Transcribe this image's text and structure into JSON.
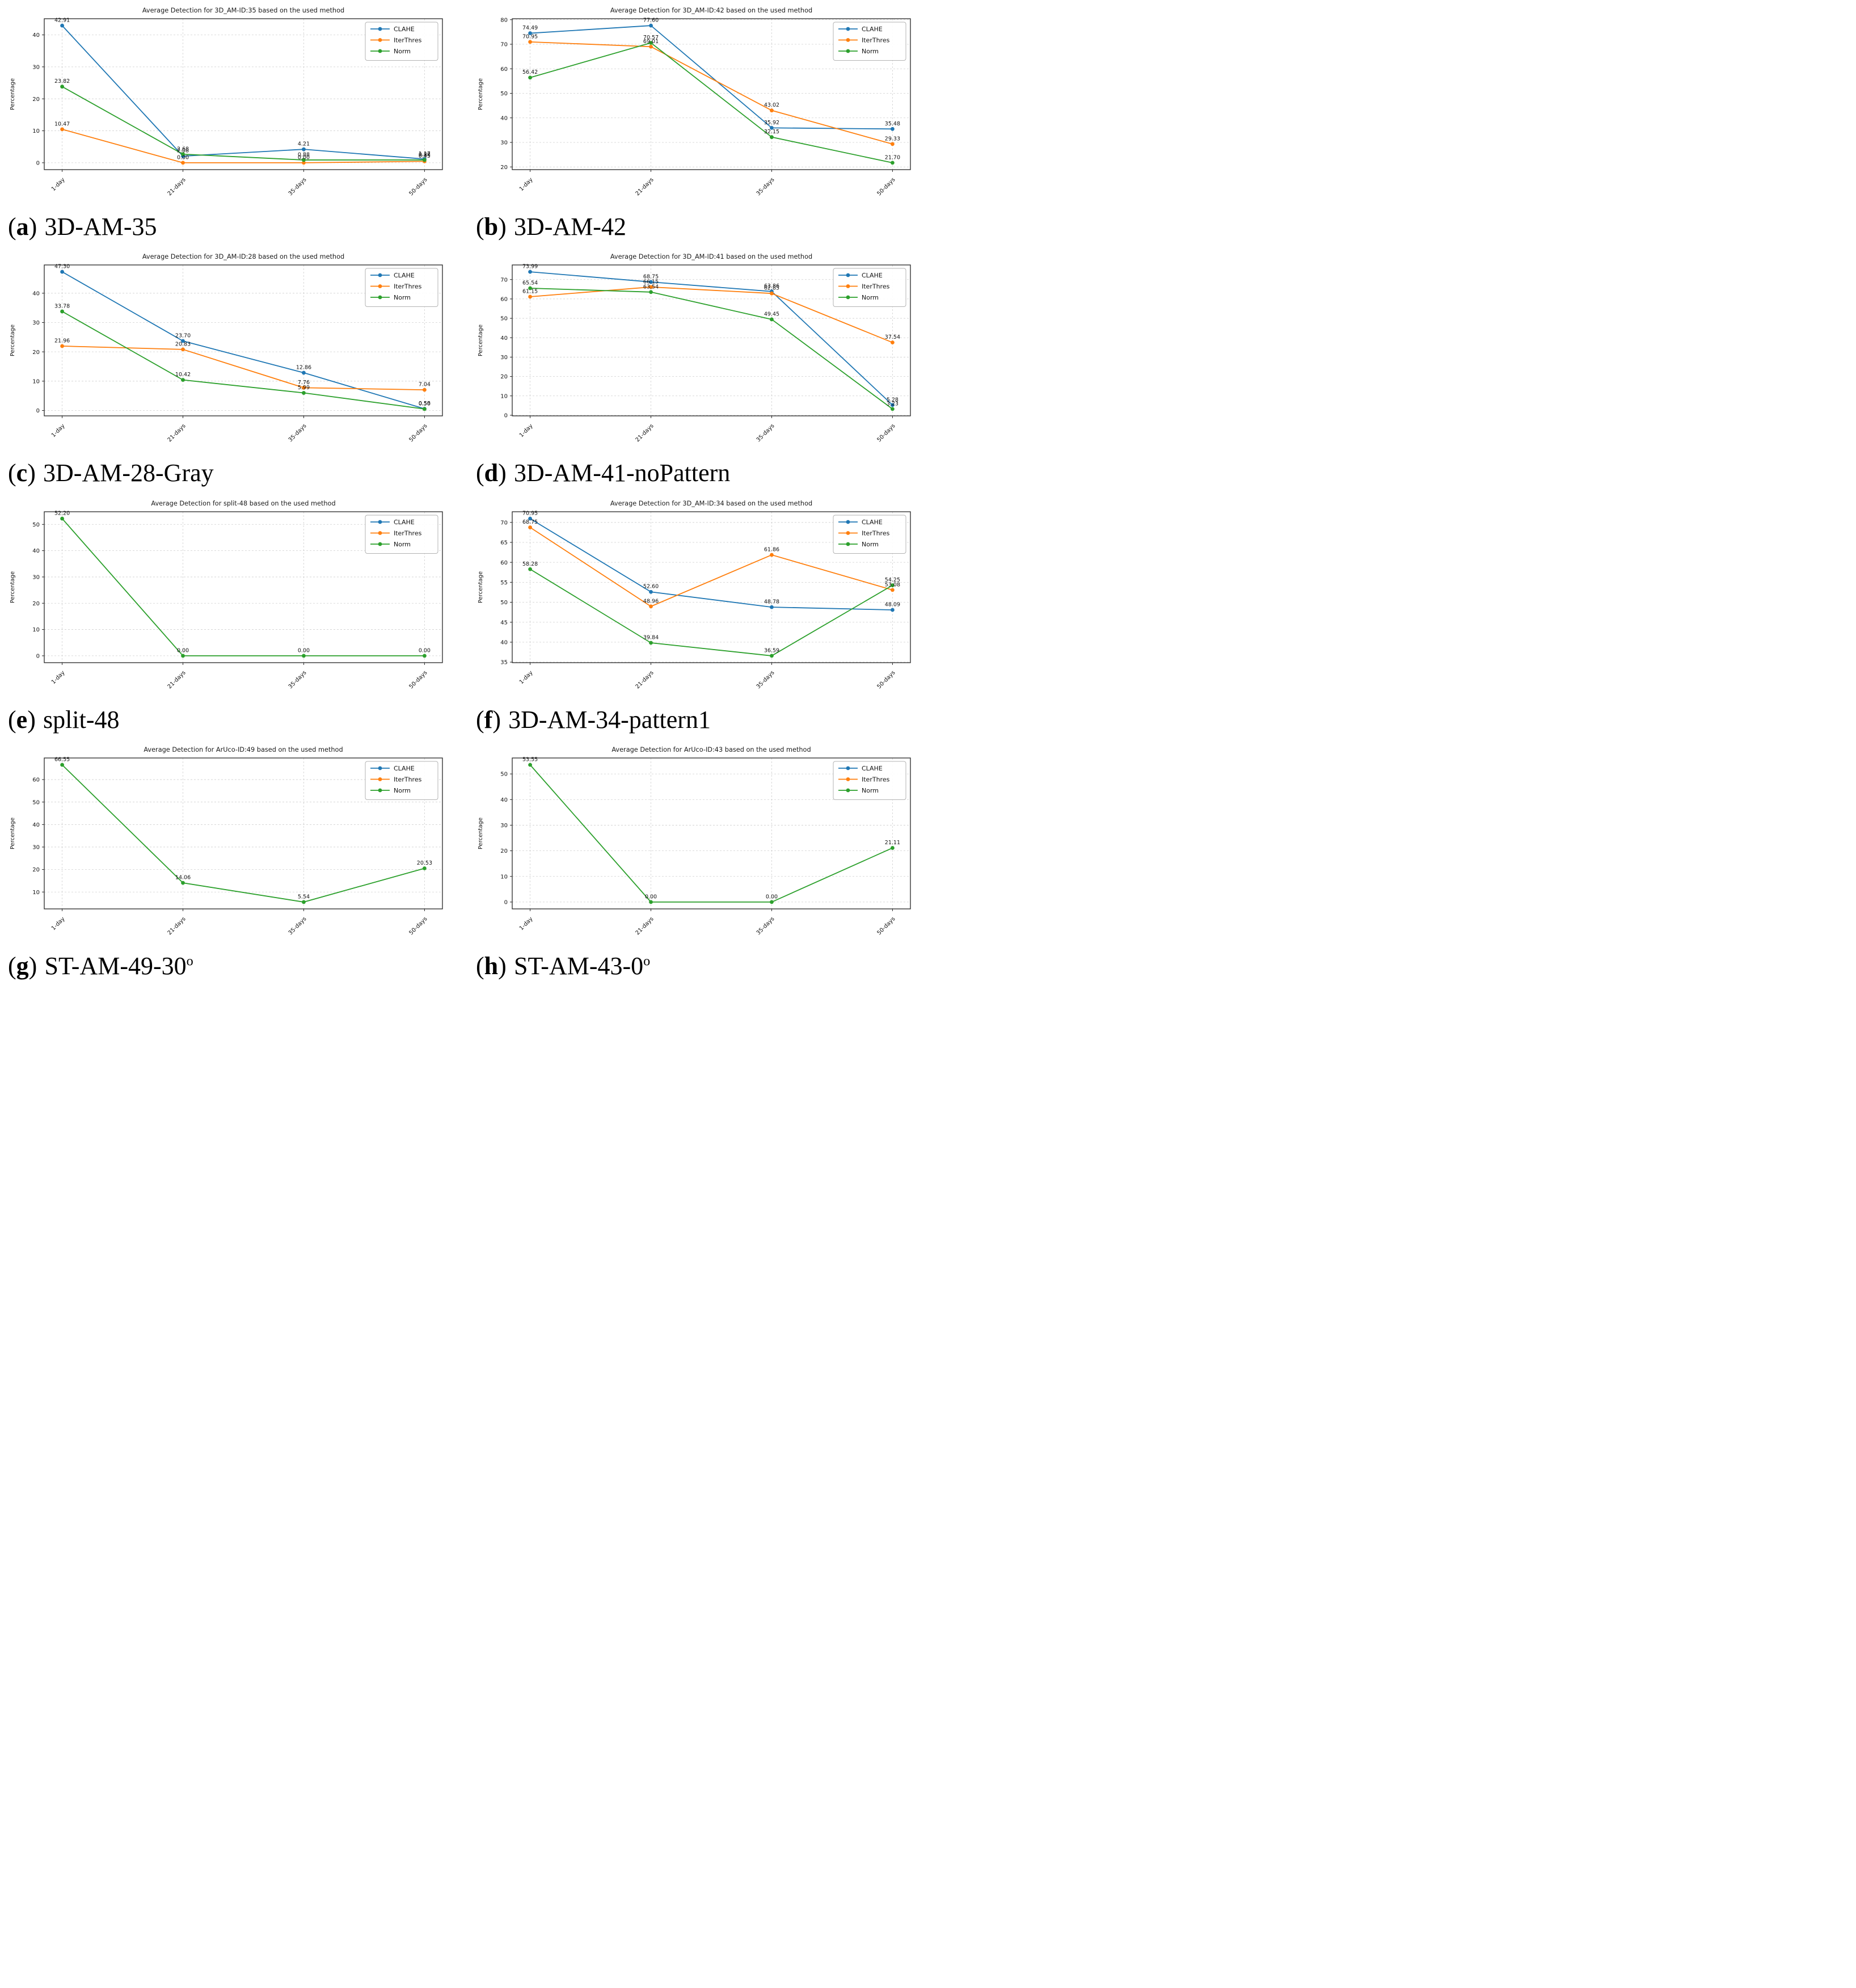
{
  "ui": {
    "paren_open": "(",
    "paren_close": ")"
  },
  "legend_labels": [
    "CLAHE",
    "IterThres",
    "Norm"
  ],
  "colors": {
    "CLAHE": "#1f77b4",
    "IterThres": "#ff7f0e",
    "Norm": "#2ca02c"
  },
  "chart_data": [
    {
      "type": "line",
      "letter": "a",
      "caption": "3D-AM-35",
      "caption_sup": "",
      "title": "Average Detection for 3D_AM-ID:35 based on the used method",
      "ylabel": "Percentage",
      "categories": [
        "1-day",
        "21-days",
        "35-days",
        "50-days"
      ],
      "yticks": [
        0,
        10,
        20,
        30,
        40
      ],
      "ylim": [
        -2.15,
        45.06
      ],
      "grid": true,
      "legend_position": "upper right",
      "series": [
        {
          "name": "CLAHE",
          "values": [
            42.91,
            2.08,
            4.21,
            1.17
          ]
        },
        {
          "name": "IterThres",
          "values": [
            10.47,
            0.0,
            0.0,
            0.45
          ]
        },
        {
          "name": "Norm",
          "values": [
            23.82,
            2.68,
            0.88,
            0.88
          ]
        }
      ]
    },
    {
      "type": "line",
      "letter": "b",
      "caption": "3D-AM-42",
      "caption_sup": "",
      "title": "Average Detection for 3D_AM-ID:42 based on the used method",
      "ylabel": "Percentage",
      "categories": [
        "1-day",
        "21-days",
        "35-days",
        "50-days"
      ],
      "yticks": [
        20,
        30,
        40,
        50,
        60,
        70,
        80
      ],
      "ylim": [
        18.9,
        80.4
      ],
      "grid": true,
      "legend_position": "upper right",
      "series": [
        {
          "name": "CLAHE",
          "values": [
            74.49,
            77.6,
            35.92,
            35.48
          ]
        },
        {
          "name": "IterThres",
          "values": [
            70.95,
            69.01,
            43.02,
            29.33
          ]
        },
        {
          "name": "Norm",
          "values": [
            56.42,
            70.57,
            32.15,
            21.7
          ]
        }
      ]
    },
    {
      "type": "line",
      "letter": "c",
      "caption": "3D-AM-28-Gray",
      "caption_sup": "",
      "title": "Average Detection for 3D_AM-ID:28 based on the used method",
      "ylabel": "Percentage",
      "categories": [
        "1-day",
        "21-days",
        "35-days",
        "50-days"
      ],
      "yticks": [
        0,
        10,
        20,
        30,
        40
      ],
      "ylim": [
        -1.84,
        49.64
      ],
      "grid": true,
      "legend_position": "upper right",
      "series": [
        {
          "name": "CLAHE",
          "values": [
            47.3,
            23.7,
            12.86,
            0.58
          ]
        },
        {
          "name": "IterThres",
          "values": [
            21.96,
            20.83,
            7.76,
            7.04
          ]
        },
        {
          "name": "Norm",
          "values": [
            33.78,
            10.42,
            5.99,
            0.5
          ]
        }
      ]
    },
    {
      "type": "line",
      "letter": "d",
      "caption": "3D-AM-41-noPattern",
      "caption_sup": "",
      "title": "Average Detection for 3D_AM-ID:41 based on the used method",
      "ylabel": "Percentage",
      "categories": [
        "1-day",
        "21-days",
        "35-days",
        "50-days"
      ],
      "yticks": [
        0,
        10,
        20,
        30,
        40,
        50,
        60,
        70
      ],
      "ylim": [
        -0.31,
        77.53
      ],
      "grid": true,
      "legend_position": "upper right",
      "series": [
        {
          "name": "CLAHE",
          "values": [
            73.99,
            68.75,
            63.86,
            5.28
          ]
        },
        {
          "name": "IterThres",
          "values": [
            61.15,
            66.15,
            62.85,
            37.54
          ]
        },
        {
          "name": "Norm",
          "values": [
            65.54,
            63.54,
            49.45,
            3.23
          ]
        }
      ]
    },
    {
      "type": "line",
      "letter": "e",
      "caption": "split-48",
      "caption_sup": "",
      "title": "Average Detection for split-48 based on the used method",
      "ylabel": "Percentage",
      "categories": [
        "1-day",
        "21-days",
        "35-days",
        "50-days"
      ],
      "yticks": [
        0,
        10,
        20,
        30,
        40,
        50
      ],
      "ylim": [
        -2.61,
        54.81
      ],
      "grid": true,
      "legend_position": "upper right",
      "series": [
        {
          "name": "Norm",
          "values": [
            52.2,
            0.0,
            0.0,
            0.0
          ]
        }
      ]
    },
    {
      "type": "line",
      "letter": "f",
      "caption": "3D-AM-34-pattern1",
      "caption_sup": "",
      "title": "Average Detection for 3D_AM-ID:34 based on the used method",
      "ylabel": "Percentage",
      "categories": [
        "1-day",
        "21-days",
        "35-days",
        "50-days"
      ],
      "yticks": [
        35,
        40,
        45,
        50,
        55,
        60,
        65,
        70
      ],
      "ylim": [
        34.87,
        72.67
      ],
      "grid": true,
      "legend_position": "upper right",
      "series": [
        {
          "name": "CLAHE",
          "values": [
            70.95,
            52.6,
            48.78,
            48.09
          ]
        },
        {
          "name": "IterThres",
          "values": [
            68.75,
            48.96,
            61.86,
            53.08
          ]
        },
        {
          "name": "Norm",
          "values": [
            58.28,
            39.84,
            36.59,
            54.25
          ]
        }
      ]
    },
    {
      "type": "line",
      "letter": "g",
      "caption": "ST-AM-49-30",
      "caption_sup": "o",
      "title": "Average Detection for ArUco-ID:49 based on the used method",
      "ylabel": "Percentage",
      "categories": [
        "1-day",
        "21-days",
        "35-days",
        "50-days"
      ],
      "yticks": [
        10,
        20,
        30,
        40,
        50,
        60
      ],
      "ylim": [
        2.49,
        69.6
      ],
      "grid": true,
      "legend_position": "upper right",
      "series": [
        {
          "name": "Norm",
          "values": [
            66.55,
            14.06,
            5.54,
            20.53
          ]
        }
      ]
    },
    {
      "type": "line",
      "letter": "h",
      "caption": "ST-AM-43-0",
      "caption_sup": "o",
      "title": "Average Detection for ArUco-ID:43 based on the used method",
      "ylabel": "Percentage",
      "categories": [
        "1-day",
        "21-days",
        "35-days",
        "50-days"
      ],
      "yticks": [
        0,
        10,
        20,
        30,
        40,
        50
      ],
      "ylim": [
        -2.68,
        56.23
      ],
      "grid": true,
      "legend_position": "upper right",
      "series": [
        {
          "name": "Norm",
          "values": [
            53.55,
            0.0,
            0.0,
            21.11
          ]
        }
      ]
    }
  ]
}
